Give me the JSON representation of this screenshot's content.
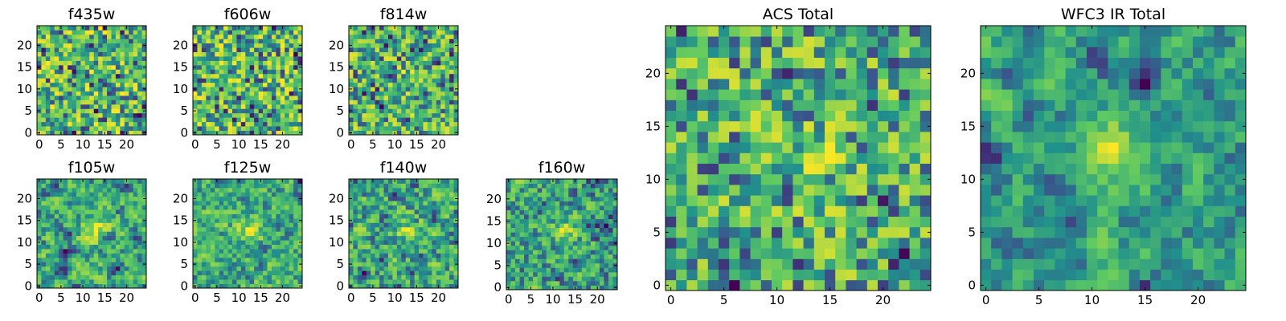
{
  "colormap": {
    "name": "viridis",
    "stops": [
      "#440154",
      "#3b528b",
      "#21918c",
      "#5ec962",
      "#fde725"
    ]
  },
  "chart_data": [
    {
      "type": "heatmap",
      "title": "f435w",
      "xticks": [
        "0",
        "5",
        "10",
        "15",
        "20"
      ],
      "yticks": [
        "0",
        "5",
        "10",
        "15",
        "20"
      ],
      "xlim": [
        0,
        25
      ],
      "ylim": [
        0,
        25
      ],
      "pixels": 25,
      "seed": 11,
      "smooth": 0.0,
      "core": 0.0
    },
    {
      "type": "heatmap",
      "title": "f606w",
      "xticks": [
        "0",
        "5",
        "10",
        "15",
        "20"
      ],
      "yticks": [
        "0",
        "5",
        "10",
        "15",
        "20"
      ],
      "xlim": [
        0,
        25
      ],
      "ylim": [
        0,
        25
      ],
      "pixels": 25,
      "seed": 23,
      "smooth": 0.0,
      "core": 0.0
    },
    {
      "type": "heatmap",
      "title": "f814w",
      "xticks": [
        "0",
        "5",
        "10",
        "15",
        "20"
      ],
      "yticks": [
        "0",
        "5",
        "10",
        "15",
        "20"
      ],
      "xlim": [
        0,
        25
      ],
      "ylim": [
        0,
        25
      ],
      "pixels": 25,
      "seed": 37,
      "smooth": 0.1,
      "core": 0.15
    },
    {
      "type": "heatmap",
      "title": "f105w",
      "xticks": [
        "0",
        "5",
        "10",
        "15",
        "20"
      ],
      "yticks": [
        "0",
        "5",
        "10",
        "15",
        "20"
      ],
      "xlim": [
        0,
        25
      ],
      "ylim": [
        0,
        25
      ],
      "pixels": 25,
      "seed": 41,
      "smooth": 0.55,
      "core": 0.35
    },
    {
      "type": "heatmap",
      "title": "f125w",
      "xticks": [
        "0",
        "5",
        "10",
        "15",
        "20"
      ],
      "yticks": [
        "0",
        "5",
        "10",
        "15",
        "20"
      ],
      "xlim": [
        0,
        25
      ],
      "ylim": [
        0,
        25
      ],
      "pixels": 25,
      "seed": 53,
      "smooth": 0.45,
      "core": 0.35
    },
    {
      "type": "heatmap",
      "title": "f140w",
      "xticks": [
        "0",
        "5",
        "10",
        "15",
        "20"
      ],
      "yticks": [
        "0",
        "5",
        "10",
        "15",
        "20"
      ],
      "xlim": [
        0,
        25
      ],
      "ylim": [
        0,
        25
      ],
      "pixels": 25,
      "seed": 67,
      "smooth": 0.35,
      "core": 0.25
    },
    {
      "type": "heatmap",
      "title": "f160w",
      "xticks": [
        "0",
        "5",
        "10",
        "15",
        "20"
      ],
      "yticks": [
        "0",
        "5",
        "10",
        "15",
        "20"
      ],
      "xlim": [
        0,
        25
      ],
      "ylim": [
        0,
        25
      ],
      "pixels": 25,
      "seed": 79,
      "smooth": 0.35,
      "core": 0.35
    },
    {
      "type": "heatmap",
      "title": "ACS Total",
      "xticks": [
        "0",
        "5",
        "10",
        "15",
        "20"
      ],
      "yticks": [
        "0",
        "5",
        "10",
        "15",
        "20"
      ],
      "xlim": [
        0,
        25
      ],
      "ylim": [
        0,
        25
      ],
      "pixels": 25,
      "seed": 97,
      "smooth": 0.15,
      "core": 0.2
    },
    {
      "type": "heatmap",
      "title": "WFC3 IR Total",
      "xticks": [
        "0",
        "5",
        "10",
        "15",
        "20"
      ],
      "yticks": [
        "0",
        "5",
        "10",
        "15",
        "20"
      ],
      "xlim": [
        0,
        25
      ],
      "ylim": [
        0,
        25
      ],
      "pixels": 25,
      "seed": 101,
      "smooth": 0.65,
      "core": 0.55
    }
  ]
}
